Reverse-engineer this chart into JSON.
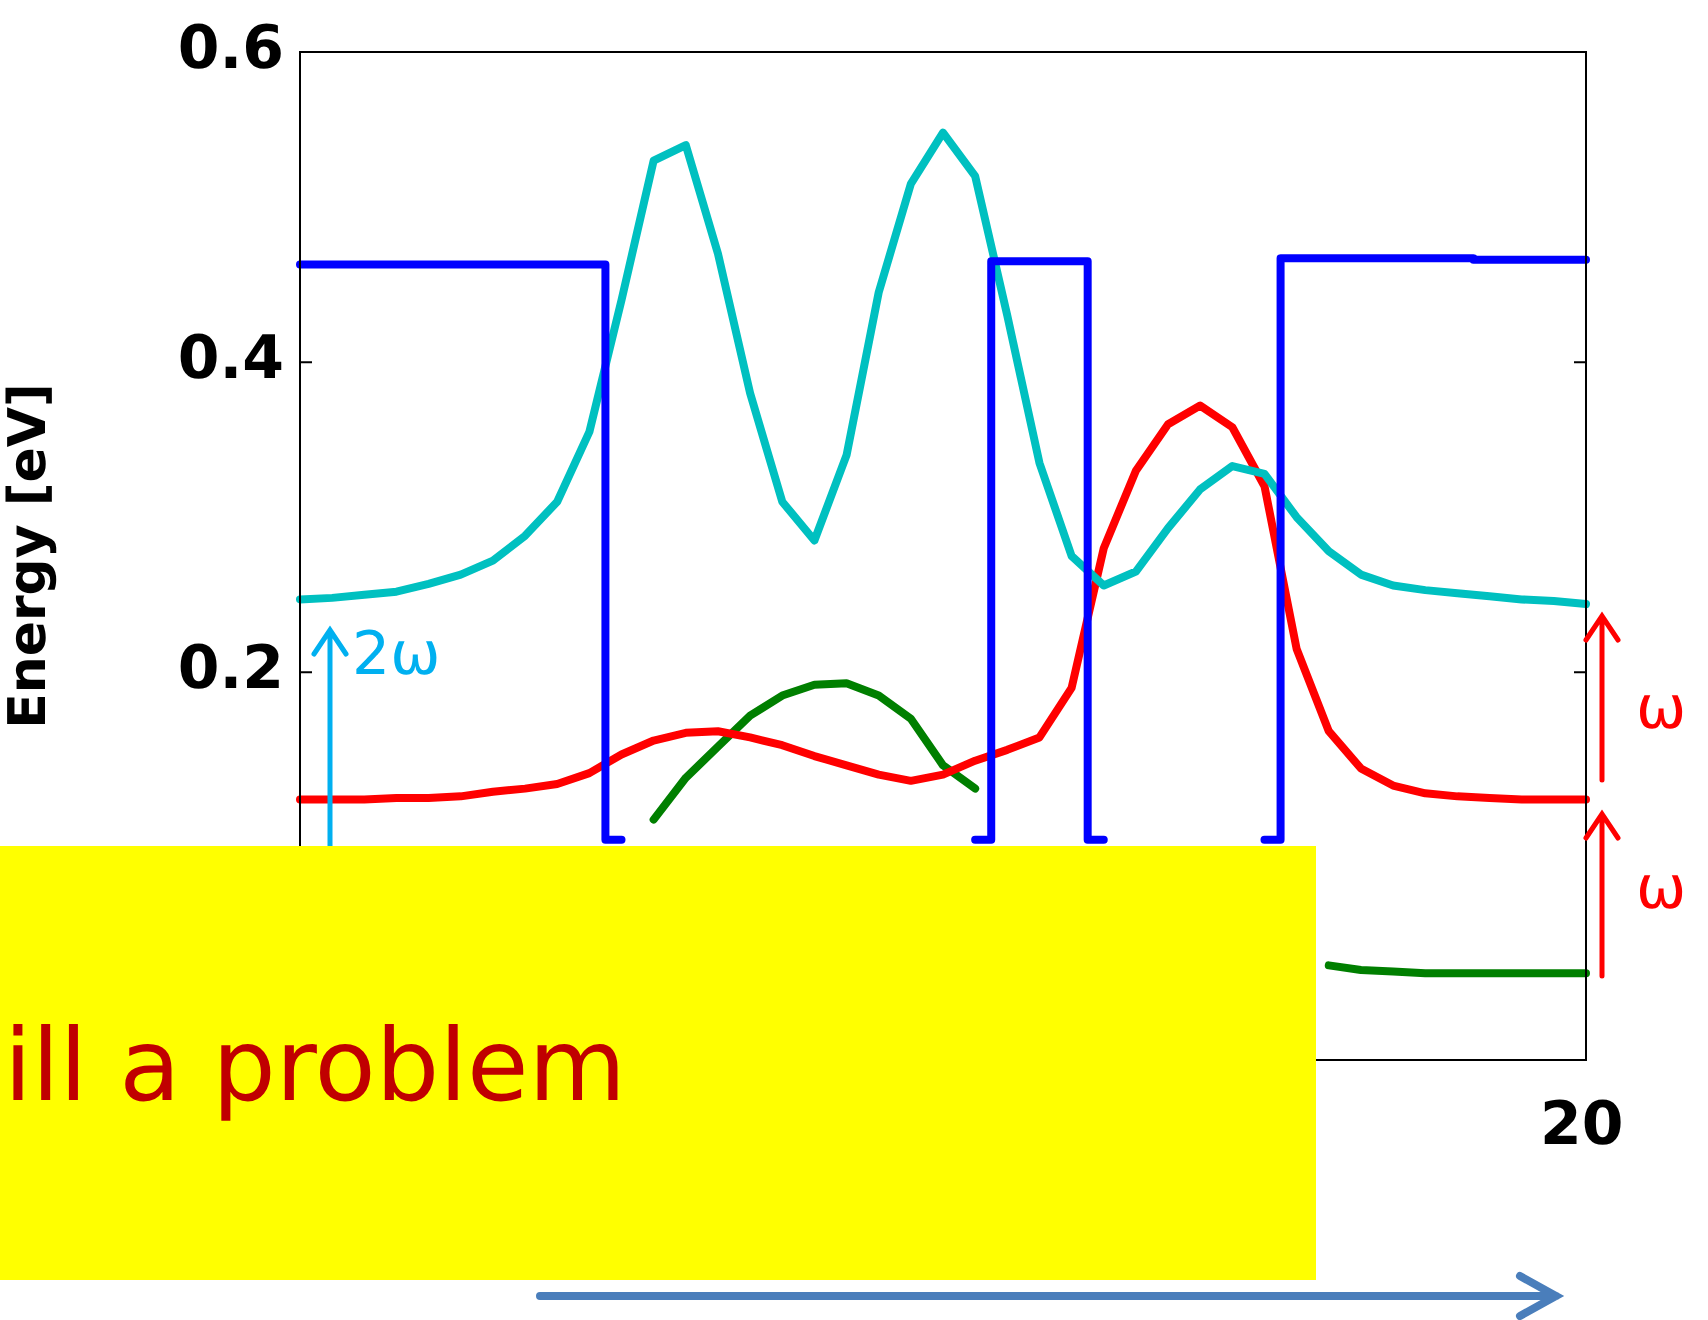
{
  "chart_data": {
    "type": "line",
    "ylabel": "Energy [eV]",
    "categories": [
      null,
      null,
      null,
      null,
      null,
      null,
      null,
      null,
      null,
      null,
      null,
      null,
      null,
      null,
      null,
      null,
      null,
      null,
      null,
      null,
      null,
      null,
      null,
      null,
      null,
      null,
      null,
      null,
      null,
      null,
      null,
      null,
      null,
      null,
      null,
      null,
      null,
      null,
      null,
      null,
      null
    ],
    "ylim": [
      -0.05,
      0.6
    ],
    "yticks": [
      0.2,
      0.4,
      0.6
    ],
    "grid": false,
    "legend": false,
    "marker": "none",
    "line_style": "solid",
    "series": [
      {
        "color": "#0000ff",
        "type": "step",
        "values": [
          0.463,
          0.463,
          0.463,
          0.463,
          0.463,
          0.463,
          0.463,
          0.463,
          0.463,
          0.463,
          0.092,
          null,
          null,
          null,
          null,
          null,
          null,
          null,
          null,
          null,
          null,
          0.092,
          0.465,
          0.465,
          0.465,
          0.092,
          null,
          null,
          null,
          null,
          0.092,
          0.467,
          0.467,
          0.467,
          0.467,
          0.467,
          0.467,
          0.466,
          0.466,
          0.466,
          0.466
        ]
      },
      {
        "color": "#00c0c0",
        "values": [
          0.247,
          0.248,
          0.25,
          0.252,
          0.257,
          0.263,
          0.272,
          0.288,
          0.31,
          0.355,
          0.44,
          0.53,
          0.54,
          0.47,
          0.38,
          0.31,
          0.285,
          0.34,
          0.445,
          0.515,
          0.548,
          0.52,
          0.43,
          0.335,
          0.275,
          0.256,
          0.265,
          0.293,
          0.318,
          0.333,
          0.328,
          0.3,
          0.278,
          0.263,
          0.256,
          0.253,
          0.251,
          0.249,
          0.247,
          0.246,
          0.244
        ]
      },
      {
        "color": "#ff0000",
        "values": [
          0.118,
          0.118,
          0.118,
          0.119,
          0.119,
          0.12,
          0.123,
          0.125,
          0.128,
          0.135,
          0.147,
          0.156,
          0.161,
          0.162,
          0.158,
          0.153,
          0.146,
          0.14,
          0.134,
          0.13,
          0.134,
          0.143,
          0.15,
          0.158,
          0.19,
          0.28,
          0.33,
          0.36,
          0.372,
          0.358,
          0.32,
          0.215,
          0.162,
          0.138,
          0.127,
          0.122,
          0.12,
          0.119,
          0.118,
          0.118,
          0.118
        ]
      },
      {
        "color": "#007f00",
        "values": [
          null,
          null,
          null,
          null,
          null,
          null,
          null,
          null,
          null,
          null,
          null,
          0.105,
          0.132,
          0.152,
          0.172,
          0.185,
          0.192,
          0.193,
          0.185,
          0.17,
          0.14,
          0.125,
          null,
          null,
          null,
          null,
          null,
          null,
          null,
          null,
          null,
          null,
          0.011,
          0.008,
          0.007,
          0.006,
          0.006,
          0.006,
          0.006,
          0.006,
          0.006
        ]
      }
    ],
    "annotations": [
      "2ω",
      "ω",
      "ω",
      "ill a problem",
      "20"
    ]
  }
}
